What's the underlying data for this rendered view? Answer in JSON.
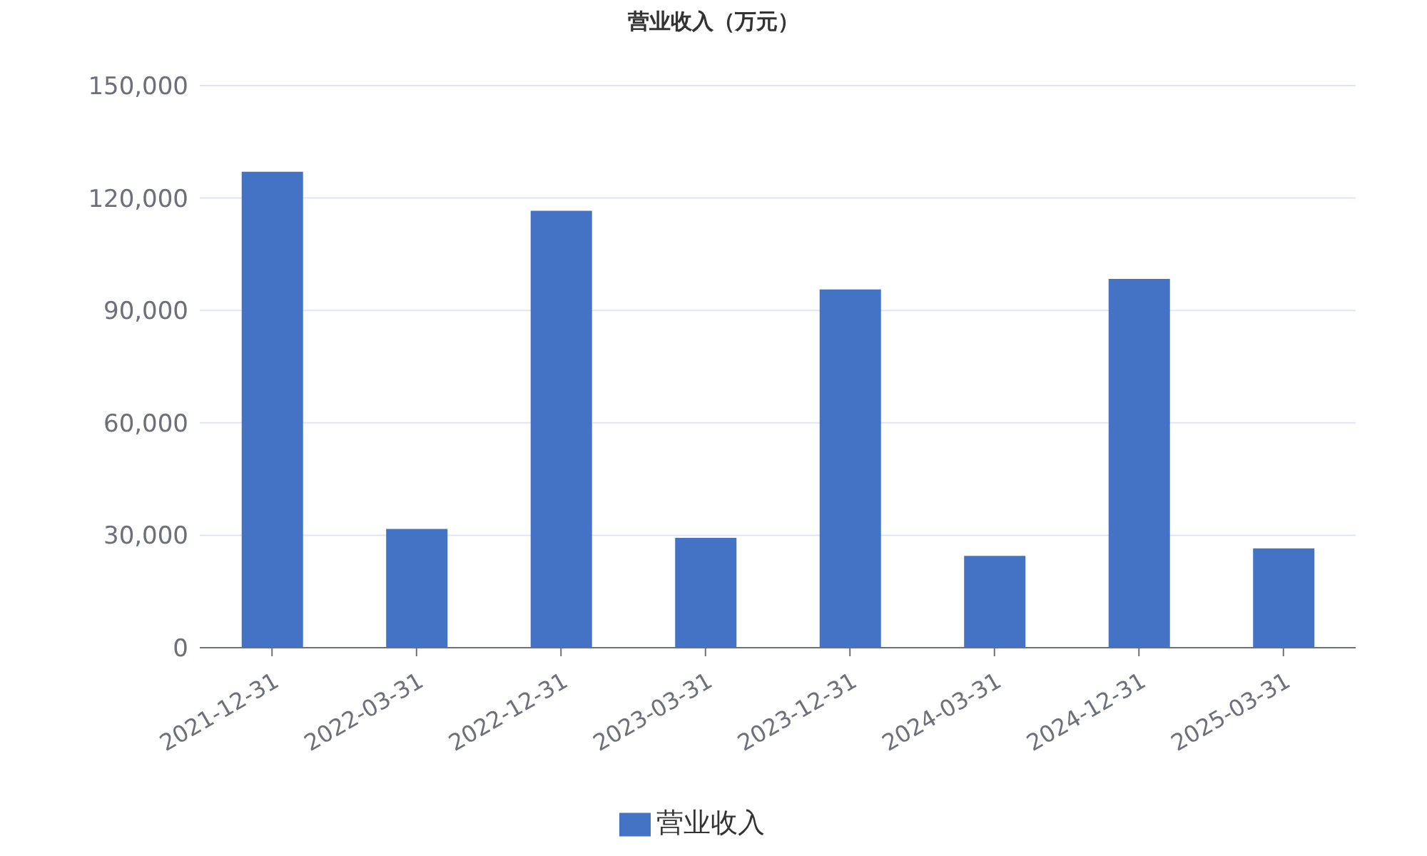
{
  "chart_data": {
    "type": "bar",
    "title": "营业收入（万元）",
    "categories": [
      "2021-12-31",
      "2022-03-31",
      "2022-12-31",
      "2023-03-31",
      "2023-12-31",
      "2024-03-31",
      "2024-12-31",
      "2025-03-31"
    ],
    "series": [
      {
        "name": "营业收入",
        "color": "#4472c4",
        "values": [
          127000,
          31700,
          116600,
          29300,
          95600,
          24500,
          98400,
          26500
        ]
      }
    ],
    "ylim": [
      0,
      150000
    ],
    "yticks": [
      {
        "value": 0,
        "label": "0"
      },
      {
        "value": 30000,
        "label": "30,000"
      },
      {
        "value": 60000,
        "label": "60,000"
      },
      {
        "value": 90000,
        "label": "90,000"
      },
      {
        "value": 120000,
        "label": "120,000"
      },
      {
        "value": 150000,
        "label": "150,000"
      }
    ],
    "grid": "y",
    "legend": "bottom"
  }
}
